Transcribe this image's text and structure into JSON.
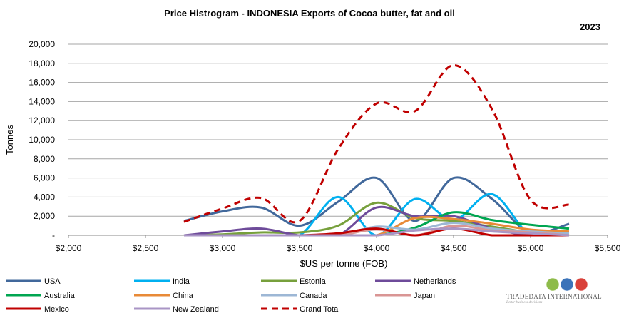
{
  "chart_data": {
    "type": "line",
    "title": "Price Histrogram - INDONESIA Exports of Cocoa butter, fat and oil",
    "year_label": "2023",
    "xlabel": "$US per tonne (FOB)",
    "ylabel": "Tonnes",
    "xlim": [
      2000,
      5500
    ],
    "ylim": [
      0,
      20000
    ],
    "x_ticks": [
      2000,
      2500,
      3000,
      3500,
      4000,
      4500,
      5000,
      5500
    ],
    "x_tick_labels": [
      "$2,000",
      "$2,500",
      "$3,000",
      "$3,500",
      "$4,000",
      "$4,500",
      "$5,000",
      "$5,500"
    ],
    "y_ticks": [
      0,
      2000,
      4000,
      6000,
      8000,
      10000,
      12000,
      14000,
      16000,
      18000,
      20000
    ],
    "y_tick_labels": [
      "-",
      "2,000",
      "4,000",
      "6,000",
      "8,000",
      "10,000",
      "12,000",
      "14,000",
      "16,000",
      "18,000",
      "20,000"
    ],
    "grid": "horizontal",
    "legend_position": "bottom",
    "x": [
      2750,
      3000,
      3250,
      3500,
      3750,
      4000,
      4250,
      4500,
      4750,
      5000,
      5250
    ],
    "series": [
      {
        "name": "USA",
        "color": "#41689B",
        "dashed": false,
        "values": [
          1500,
          2500,
          2900,
          1000,
          3500,
          6000,
          1500,
          6000,
          3800,
          200,
          1200
        ]
      },
      {
        "name": "India",
        "color": "#00B0F0",
        "dashed": false,
        "values": [
          0,
          0,
          0,
          0,
          4000,
          0,
          3800,
          1600,
          4300,
          0,
          0
        ]
      },
      {
        "name": "Estonia",
        "color": "#77A03C",
        "dashed": false,
        "values": [
          0,
          100,
          300,
          300,
          1000,
          3400,
          1800,
          1500,
          900,
          300,
          0
        ]
      },
      {
        "name": "Netherlands",
        "color": "#6E4B9A",
        "dashed": false,
        "values": [
          0,
          400,
          700,
          0,
          0,
          2900,
          2000,
          2000,
          700,
          0,
          0
        ]
      },
      {
        "name": "Australia",
        "color": "#00A651",
        "dashed": false,
        "values": [
          0,
          0,
          0,
          0,
          0,
          0,
          800,
          2400,
          1600,
          1100,
          700
        ]
      },
      {
        "name": "China",
        "color": "#E88A37",
        "dashed": false,
        "values": [
          0,
          0,
          0,
          0,
          0,
          0,
          1800,
          1700,
          1200,
          600,
          400
        ]
      },
      {
        "name": "Canada",
        "color": "#9DB7D5",
        "dashed": false,
        "values": [
          0,
          0,
          0,
          0,
          0,
          900,
          600,
          1300,
          700,
          400,
          200
        ]
      },
      {
        "name": "Japan",
        "color": "#D99594",
        "dashed": false,
        "values": [
          0,
          0,
          0,
          0,
          0,
          600,
          0,
          1000,
          500,
          300,
          0
        ]
      },
      {
        "name": "Mexico",
        "color": "#C00000",
        "dashed": false,
        "values": [
          0,
          0,
          0,
          0,
          200,
          700,
          0,
          700,
          0,
          0,
          0
        ]
      },
      {
        "name": "New Zealand",
        "color": "#A995C5",
        "dashed": false,
        "values": [
          0,
          0,
          0,
          0,
          0,
          0,
          500,
          700,
          400,
          200,
          0
        ]
      },
      {
        "name": "Grand Total",
        "color": "#C00000",
        "dashed": true,
        "values": [
          1400,
          2800,
          3900,
          1500,
          9000,
          13800,
          13000,
          17800,
          13200,
          3700,
          3200
        ]
      }
    ]
  },
  "logo": {
    "name": "TradeData International",
    "text": "TRADEDATA INTERNATIONAL",
    "tagline": "Better business decisions"
  }
}
